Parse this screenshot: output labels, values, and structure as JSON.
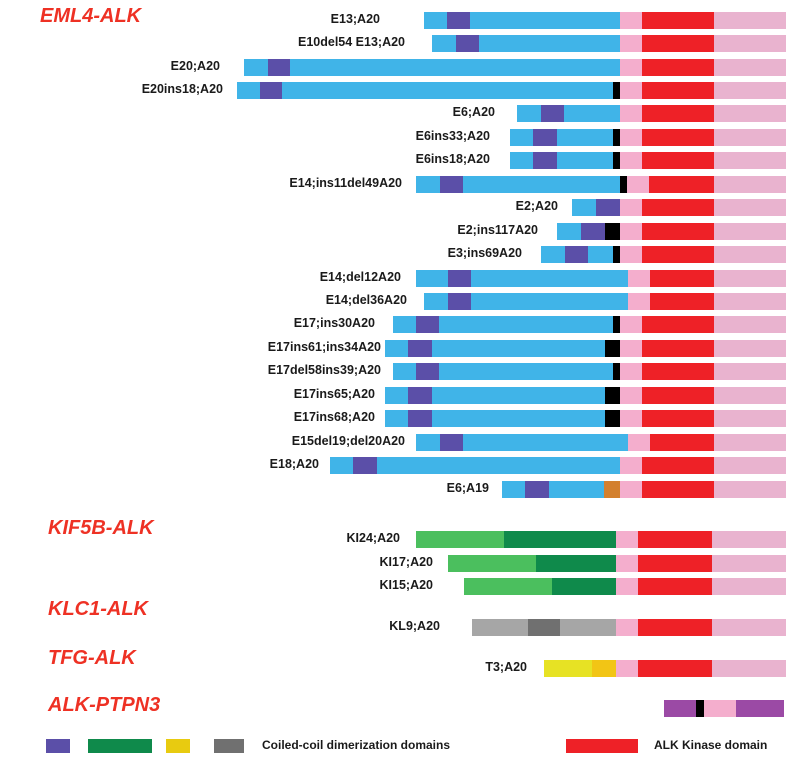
{
  "colors": {
    "eml4": "#40b4e8",
    "eml4_cc": "#5b4fa8",
    "junction": "#000000",
    "ext": "#f4aecd",
    "kinase": "#ee2127",
    "tail": "#e9b3cf",
    "kif5b_light": "#4bbf5e",
    "kif5b_dark": "#0f8a4b",
    "klc1_light": "#a6a6a6",
    "klc1_dark": "#707070",
    "tfg_light": "#e7e224",
    "tfg_dark": "#f2c515",
    "e6a19_insert": "#d3802e",
    "ptpn3": "#9b4aa5"
  },
  "groups": [
    {
      "title": "EML4-ALK"
    },
    {
      "title": "KIF5B-ALK"
    },
    {
      "title": "KLC1-ALK"
    },
    {
      "title": "TFG-ALK"
    },
    {
      "title": "ALK-PTPN3"
    }
  ],
  "variants": [
    {
      "label": "E13;A20",
      "segments": [
        {
          "kind": "eml4",
          "start": 424,
          "end": 620
        },
        {
          "kind": "eml4_cc",
          "start": 447,
          "end": 470
        }
      ]
    },
    {
      "label": "E10del54 E13;A20",
      "segments": [
        {
          "kind": "eml4",
          "start": 432,
          "end": 620
        },
        {
          "kind": "eml4_cc",
          "start": 456,
          "end": 479
        }
      ]
    },
    {
      "label": "E20;A20",
      "segments": [
        {
          "kind": "eml4",
          "start": 244,
          "end": 620
        },
        {
          "kind": "eml4_cc",
          "start": 268,
          "end": 290
        }
      ]
    },
    {
      "label": "E20ins18;A20",
      "segments": [
        {
          "kind": "eml4",
          "start": 237,
          "end": 613
        },
        {
          "kind": "eml4_cc",
          "start": 260,
          "end": 282
        },
        {
          "kind": "junction",
          "start": 613,
          "end": 620
        }
      ]
    },
    {
      "label": "E6;A20",
      "segments": [
        {
          "kind": "eml4",
          "start": 517,
          "end": 620
        },
        {
          "kind": "eml4_cc",
          "start": 541,
          "end": 564
        }
      ]
    },
    {
      "label": "E6ins33;A20",
      "segments": [
        {
          "kind": "eml4",
          "start": 510,
          "end": 613
        },
        {
          "kind": "eml4_cc",
          "start": 533,
          "end": 557
        },
        {
          "kind": "junction",
          "start": 613,
          "end": 620
        }
      ]
    },
    {
      "label": "E6ins18;A20",
      "segments": [
        {
          "kind": "eml4",
          "start": 510,
          "end": 613
        },
        {
          "kind": "eml4_cc",
          "start": 533,
          "end": 557
        },
        {
          "kind": "junction",
          "start": 613,
          "end": 620
        }
      ]
    },
    {
      "label": "E14;ins11del49A20",
      "segments": [
        {
          "kind": "eml4",
          "start": 416,
          "end": 620
        },
        {
          "kind": "eml4_cc",
          "start": 440,
          "end": 463
        },
        {
          "kind": "junction",
          "start": 620,
          "end": 627
        },
        {
          "kind": "eml4",
          "start": 627,
          "end": 620
        }
      ]
    },
    {
      "label": "E2;A20",
      "segments": [
        {
          "kind": "eml4",
          "start": 572,
          "end": 620
        },
        {
          "kind": "eml4_cc",
          "start": 596,
          "end": 620
        }
      ]
    },
    {
      "label": "E2;ins117A20",
      "segments": [
        {
          "kind": "eml4",
          "start": 557,
          "end": 605
        },
        {
          "kind": "eml4_cc",
          "start": 581,
          "end": 605
        },
        {
          "kind": "junction",
          "start": 605,
          "end": 620
        }
      ]
    },
    {
      "label": "E3;ins69A20",
      "segments": [
        {
          "kind": "eml4",
          "start": 541,
          "end": 613
        },
        {
          "kind": "eml4_cc",
          "start": 565,
          "end": 588
        },
        {
          "kind": "junction",
          "start": 613,
          "end": 620
        }
      ]
    },
    {
      "label": "E14;del12A20",
      "segments": [
        {
          "kind": "eml4",
          "start": 416,
          "end": 628
        },
        {
          "kind": "eml4_cc",
          "start": 448,
          "end": 471
        }
      ]
    },
    {
      "label": "E14;del36A20",
      "segments": [
        {
          "kind": "eml4",
          "start": 424,
          "end": 628
        },
        {
          "kind": "eml4_cc",
          "start": 448,
          "end": 471
        }
      ]
    },
    {
      "label": "E17;ins30A20",
      "segments": [
        {
          "kind": "eml4",
          "start": 393,
          "end": 613
        },
        {
          "kind": "eml4_cc",
          "start": 416,
          "end": 439
        },
        {
          "kind": "junction",
          "start": 613,
          "end": 620
        }
      ]
    },
    {
      "label": "E17ins61;ins34A20",
      "segments": [
        {
          "kind": "eml4",
          "start": 385,
          "end": 605
        },
        {
          "kind": "eml4_cc",
          "start": 408,
          "end": 432
        },
        {
          "kind": "junction",
          "start": 605,
          "end": 620
        }
      ]
    },
    {
      "label": "E17del58ins39;A20",
      "segments": [
        {
          "kind": "eml4",
          "start": 393,
          "end": 613
        },
        {
          "kind": "eml4_cc",
          "start": 416,
          "end": 439
        },
        {
          "kind": "junction",
          "start": 613,
          "end": 620
        }
      ]
    },
    {
      "label": "E17ins65;A20",
      "segments": [
        {
          "kind": "eml4",
          "start": 385,
          "end": 605
        },
        {
          "kind": "eml4_cc",
          "start": 408,
          "end": 432
        },
        {
          "kind": "junction",
          "start": 605,
          "end": 620
        }
      ]
    },
    {
      "label": "E17ins68;A20",
      "segments": [
        {
          "kind": "eml4",
          "start": 385,
          "end": 605
        },
        {
          "kind": "eml4_cc",
          "start": 408,
          "end": 432
        },
        {
          "kind": "junction",
          "start": 605,
          "end": 620
        }
      ]
    },
    {
      "label": "E15del19;del20A20",
      "segments": [
        {
          "kind": "eml4",
          "start": 416,
          "end": 628
        },
        {
          "kind": "eml4_cc",
          "start": 440,
          "end": 463
        }
      ]
    },
    {
      "label": "E18;A20",
      "segments": [
        {
          "kind": "eml4",
          "start": 330,
          "end": 620
        },
        {
          "kind": "eml4_cc",
          "start": 353,
          "end": 377
        }
      ]
    },
    {
      "label": "E6;A19",
      "segments": [
        {
          "kind": "eml4",
          "start": 502,
          "end": 604
        },
        {
          "kind": "eml4_cc",
          "start": 525,
          "end": 549
        },
        {
          "kind": "e6a19_insert",
          "start": 604,
          "end": 620
        }
      ]
    },
    {
      "label": "KI24;A20",
      "segments": [
        {
          "kind": "kif5b_light",
          "start": 416,
          "end": 504
        },
        {
          "kind": "kif5b_dark",
          "start": 504,
          "end": 616
        }
      ]
    },
    {
      "label": "KI17;A20",
      "segments": [
        {
          "kind": "kif5b_light",
          "start": 448,
          "end": 536
        },
        {
          "kind": "kif5b_dark",
          "start": 536,
          "end": 616
        }
      ]
    },
    {
      "label": "KI15;A20",
      "segments": [
        {
          "kind": "kif5b_light",
          "start": 464,
          "end": 552
        },
        {
          "kind": "kif5b_dark",
          "start": 552,
          "end": 616
        }
      ]
    },
    {
      "label": "KL9;A20",
      "segments": [
        {
          "kind": "klc1_light",
          "start": 472,
          "end": 528
        },
        {
          "kind": "klc1_dark",
          "start": 528,
          "end": 560
        },
        {
          "kind": "klc1_light",
          "start": 560,
          "end": 616
        }
      ]
    },
    {
      "label": "T3;A20",
      "segments": [
        {
          "kind": "tfg_light",
          "start": 544,
          "end": 592
        },
        {
          "kind": "tfg_dark",
          "start": 592,
          "end": 616
        }
      ]
    },
    {
      "label": "",
      "segments": [
        {
          "kind": "ptpn3",
          "start": 664,
          "end": 696
        },
        {
          "kind": "junction",
          "start": 696,
          "end": 704
        },
        {
          "kind": "ext",
          "start": 704,
          "end": 736
        },
        {
          "kind": "ptpn3",
          "start": 736,
          "end": 784
        }
      ]
    }
  ],
  "legend": {
    "coiled_coil_label": "Coiled-coil dimerization domains",
    "kinase_label": "ALK Kinase domain"
  }
}
